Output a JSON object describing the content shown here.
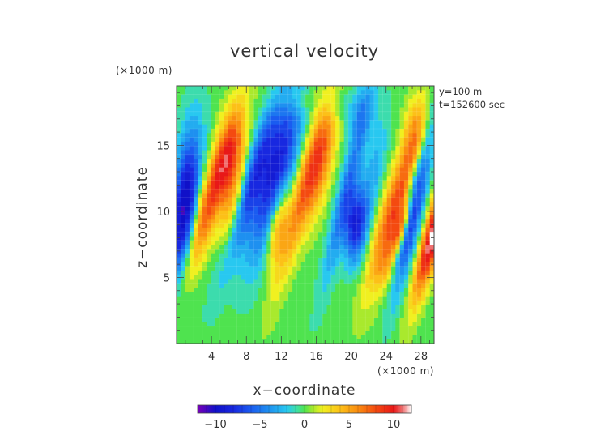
{
  "chart_data": {
    "type": "heatmap",
    "title": "vertical velocity",
    "xlabel": "x−coordinate",
    "ylabel": "z−coordinate",
    "x_units": "(×1000 m)",
    "y_units": "(×1000 m)",
    "annotations": [
      "y=100 m",
      "t=152600 sec"
    ],
    "xlim": [
      0,
      29.5
    ],
    "ylim": [
      0,
      19.5
    ],
    "x_ticks": [
      4,
      8,
      12,
      16,
      20,
      24,
      28
    ],
    "x_tick_labels": [
      "4",
      "8",
      "12",
      "16",
      "20",
      "24",
      "28"
    ],
    "y_ticks": [
      5,
      10,
      15
    ],
    "y_tick_labels": [
      "5",
      "10",
      "15"
    ],
    "colorbar": {
      "range": [
        -12,
        12
      ],
      "ticks": [
        -10,
        -5,
        0,
        5,
        10
      ],
      "tick_labels": [
        "−10",
        "−5",
        "0",
        "5",
        "10"
      ],
      "stops": [
        [
          -12,
          "#7a00b8"
        ],
        [
          -10,
          "#1010c8"
        ],
        [
          -8,
          "#1828e0"
        ],
        [
          -6,
          "#1a5cf0"
        ],
        [
          -4,
          "#1e90f0"
        ],
        [
          -2,
          "#28c8f0"
        ],
        [
          -0.8,
          "#40e0a0"
        ],
        [
          0,
          "#4fe34f"
        ],
        [
          0.8,
          "#9be830"
        ],
        [
          2,
          "#f0f020"
        ],
        [
          4,
          "#fcc018"
        ],
        [
          6,
          "#fa8c10"
        ],
        [
          8,
          "#f44a10"
        ],
        [
          10,
          "#e81818"
        ],
        [
          11,
          "#f07070"
        ],
        [
          12,
          "#ffffff"
        ]
      ]
    },
    "blobs": [
      {
        "x": 0.9,
        "z": 10.0,
        "sx": 1.1,
        "sz": 4.2,
        "v": -11,
        "tilt": 0.15
      },
      {
        "x": 3.3,
        "z": 10.0,
        "sx": 1.0,
        "sz": 4.5,
        "v": 8,
        "tilt": 0.45
      },
      {
        "x": 6.2,
        "z": 13.8,
        "sx": 1.1,
        "sz": 2.8,
        "v": 7,
        "tilt": 0.2
      },
      {
        "x": 6.5,
        "z": 9.5,
        "sx": 0.8,
        "sz": 2.5,
        "v": 4,
        "tilt": 0.3
      },
      {
        "x": 8.2,
        "z": 11.5,
        "sx": 0.9,
        "sz": 4.5,
        "v": -7,
        "tilt": 0.45
      },
      {
        "x": 11.4,
        "z": 13.0,
        "sx": 1.4,
        "sz": 4.5,
        "v": -9,
        "tilt": 0.35
      },
      {
        "x": 11.6,
        "z": 9.0,
        "sx": 0.8,
        "sz": 2.0,
        "v": 6,
        "tilt": 0.2
      },
      {
        "x": 14.5,
        "z": 11.5,
        "sx": 0.9,
        "sz": 5.0,
        "v": 6,
        "tilt": 0.4
      },
      {
        "x": 16.5,
        "z": 13.5,
        "sx": 1.0,
        "sz": 3.0,
        "v": 6,
        "tilt": 0.3
      },
      {
        "x": 19.5,
        "z": 11.5,
        "sx": 0.7,
        "sz": 5.0,
        "v": -5,
        "tilt": 0.35
      },
      {
        "x": 20.5,
        "z": 9.0,
        "sx": 0.9,
        "sz": 2.0,
        "v": -8,
        "tilt": 0.1
      },
      {
        "x": 22.5,
        "z": 12.5,
        "sx": 0.9,
        "sz": 3.5,
        "v": -3,
        "tilt": 0.25
      },
      {
        "x": 25.3,
        "z": 10.5,
        "sx": 1.2,
        "sz": 4.2,
        "v": 9,
        "tilt": 0.45
      },
      {
        "x": 25.8,
        "z": 8.8,
        "sx": 0.5,
        "sz": 1.5,
        "v": 6,
        "tilt": 0.45
      },
      {
        "x": 27.3,
        "z": 11.0,
        "sx": 0.8,
        "sz": 4.5,
        "v": -10,
        "tilt": 0.3
      },
      {
        "x": 29.5,
        "z": 8.5,
        "sx": 0.8,
        "sz": 3.5,
        "v": 12,
        "tilt": 0.4
      },
      {
        "x": 27.5,
        "z": 16.0,
        "sx": 1.0,
        "sz": 2.0,
        "v": 4,
        "tilt": 0.1
      },
      {
        "x": 14.0,
        "z": 18.5,
        "sx": 2.0,
        "sz": 0.8,
        "v": 2,
        "tilt": 0.0
      },
      {
        "x": 18.0,
        "z": 18.2,
        "sx": 1.2,
        "sz": 0.8,
        "v": -2,
        "tilt": 0.0
      },
      {
        "x": 21.0,
        "z": 17.5,
        "sx": 1.0,
        "sz": 1.5,
        "v": -3,
        "tilt": 0.2
      },
      {
        "x": 24.0,
        "z": 5.5,
        "sx": 0.8,
        "sz": 1.0,
        "v": 1.5,
        "tilt": 0.0
      }
    ]
  }
}
